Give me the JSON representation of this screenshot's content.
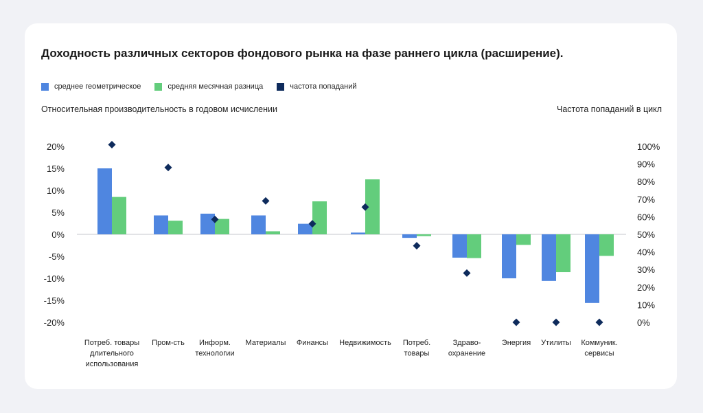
{
  "chart_data": {
    "type": "bar",
    "title": "Доходность различных секторов фондового рынка на фазе раннего цикла (расширение).",
    "ylabel": "Относительная производительность в годовом исчислении",
    "y2label": "Частота попаданий в цикл",
    "ylim": [
      -20,
      20
    ],
    "y2lim": [
      0,
      100
    ],
    "yticks": [
      "20%",
      "15%",
      "10%",
      "5%",
      "0%",
      "-5%",
      "-10%",
      "-15%",
      "-20%"
    ],
    "y2ticks": [
      "100%",
      "90%",
      "80%",
      "70%",
      "60%",
      "50%",
      "40%",
      "30%",
      "20%",
      "10%",
      "0%"
    ],
    "legend_position": "top-left",
    "categories": [
      [
        "Потреб. товары",
        "длительного",
        "использования"
      ],
      [
        "Пром-сть"
      ],
      [
        "Информ.",
        "технологии"
      ],
      [
        "Материалы"
      ],
      [
        "Финансы"
      ],
      [
        "Недвижимость"
      ],
      [
        "Потреб.",
        "товары"
      ],
      [
        "Здраво-",
        "охранение"
      ],
      [
        "Энергия"
      ],
      [
        "Утилиты"
      ],
      [
        "Коммуник.",
        "сервисы"
      ]
    ],
    "series": [
      {
        "name": "среднее геометрическое",
        "type": "bar",
        "axis": "left",
        "color": "#4f86e0",
        "values": [
          15,
          4.3,
          4.7,
          4.3,
          2.4,
          0.4,
          -0.8,
          -5.3,
          -10,
          -10.6,
          -15.6
        ]
      },
      {
        "name": "средняя месячная разница",
        "type": "bar",
        "axis": "left",
        "color": "#63cd7c",
        "values": [
          8.5,
          3.1,
          3.5,
          0.7,
          7.5,
          12.5,
          -0.4,
          -5.4,
          -2.4,
          -8.6,
          -4.9
        ]
      },
      {
        "name": "частота попаданий",
        "type": "scatter",
        "axis": "right",
        "color": "#0e2b5c",
        "values": [
          101,
          88,
          58.5,
          69,
          56,
          65.5,
          43.5,
          28,
          0,
          0,
          0
        ]
      }
    ]
  }
}
